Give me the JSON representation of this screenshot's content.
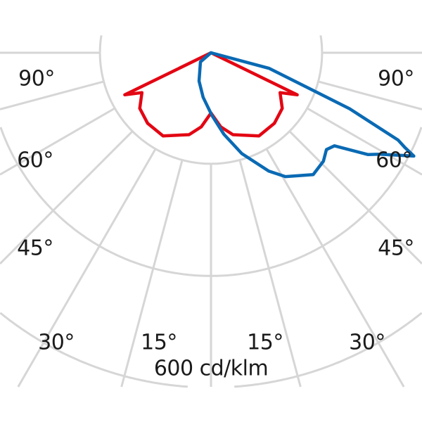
{
  "chart_data": {
    "type": "polar",
    "unit_label": "600 cd/klm",
    "angle_labels": {
      "left": [
        "90°",
        "60°",
        "45°",
        "30°",
        "15°"
      ],
      "right": [
        "15°",
        "30°",
        "45°",
        "60°",
        "90°"
      ]
    },
    "grid": true,
    "radial_step_deg": 15,
    "rings_cd_klm": [
      200,
      400,
      600
    ],
    "colors": {
      "grid": "#d6d6d6",
      "series_red": "#e30613",
      "series_blue": "#0a6ab4",
      "text": "#1a1a1a"
    },
    "series": [
      {
        "color": "#e30613",
        "angles": [
          -90,
          -66,
          -64,
          -60,
          -52,
          -42,
          -30,
          -15,
          -7.5,
          0,
          7.5,
          15,
          30,
          42,
          52,
          60,
          64,
          66,
          90
        ],
        "values": [
          0,
          0,
          172,
          143,
          162,
          170,
          172,
          152,
          134,
          108,
          134,
          152,
          172,
          170,
          162,
          143,
          172,
          0,
          0
        ]
      },
      {
        "color": "#0a6ab4",
        "angles": [
          -90,
          -49,
          -23,
          -10,
          1,
          9,
          17,
          26,
          31,
          40,
          46,
          50,
          53,
          57,
          59,
          63,
          64,
          65,
          68,
          75,
          90
        ],
        "values": [
          0,
          25,
          55,
          81,
          113,
          148,
          189,
          236,
          259,
          285,
          280,
          270,
          277,
          335,
          353,
          408,
          386,
          370,
          268,
          108,
          0
        ]
      }
    ]
  }
}
